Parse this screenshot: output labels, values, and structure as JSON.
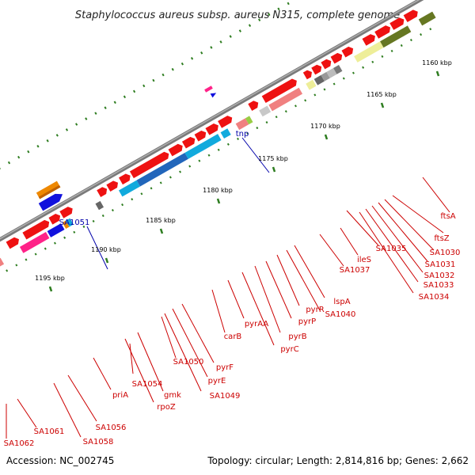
{
  "title": "Staphylococcus aureus subsp. aureus N315, complete genome",
  "footer": {
    "accession": "Accession: NC_002745",
    "topology": "Topology: circular; Length: 2,814,816 bp; Genes: 2,662"
  },
  "colors": {
    "backbone": "#7a7a7a",
    "tick": "#2e7d20",
    "label_red": "#cc0000",
    "label_blue": "#0000aa",
    "gene_red": "#ee1111",
    "gene_cyan": "#11aadd",
    "gene_blue": "#1111dd",
    "gene_pink": "#ff2288",
    "gene_salmon": "#f08080",
    "gene_olive": "#667722",
    "gene_yellow": "#eeee99",
    "gene_orange": "#ee8800",
    "gene_gray": "#888888",
    "gene_lightgreen": "#99cc44"
  },
  "ticks": [
    {
      "kbp": 1160,
      "label": "1160 kbp"
    },
    {
      "kbp": 1165,
      "label": "1165 kbp"
    },
    {
      "kbp": 1170,
      "label": "1170 kbp"
    },
    {
      "kbp": 1175,
      "label": "1175 kbp"
    },
    {
      "kbp": 1180,
      "label": "1180 kbp"
    },
    {
      "kbp": 1185,
      "label": "1185 kbp"
    },
    {
      "kbp": 1190,
      "label": "1190 kbp"
    },
    {
      "kbp": 1195,
      "label": "1195 kbp"
    }
  ],
  "labels_outer": [
    {
      "text": "tnp",
      "color": "blue"
    },
    {
      "text": "SA1051",
      "color": "blue"
    }
  ],
  "labels_inner": [
    {
      "text": "ftsA"
    },
    {
      "text": "ftsZ"
    },
    {
      "text": "SA1030"
    },
    {
      "text": "SA1031"
    },
    {
      "text": "SA1032"
    },
    {
      "text": "SA1033"
    },
    {
      "text": "SA1034"
    },
    {
      "text": "SA1035"
    },
    {
      "text": "ileS"
    },
    {
      "text": "SA1037"
    },
    {
      "text": "lspA"
    },
    {
      "text": "SA1040"
    },
    {
      "text": "pyrR"
    },
    {
      "text": "pyrP"
    },
    {
      "text": "pyrB"
    },
    {
      "text": "pyrC"
    },
    {
      "text": "pyrAA"
    },
    {
      "text": "carB"
    },
    {
      "text": "pyrF"
    },
    {
      "text": "pyrE"
    },
    {
      "text": "SA1049"
    },
    {
      "text": "SA1050"
    },
    {
      "text": "gmk"
    },
    {
      "text": "rpoZ"
    },
    {
      "text": "SA1054"
    },
    {
      "text": "priA"
    },
    {
      "text": "SA1056"
    },
    {
      "text": "SA1058"
    },
    {
      "text": "SA1061"
    },
    {
      "text": "SA1062"
    }
  ]
}
